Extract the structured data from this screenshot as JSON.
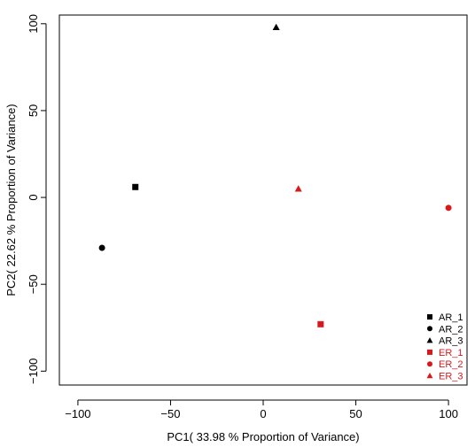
{
  "chart_data": {
    "type": "scatter",
    "title": "",
    "xlabel": "PC1( 33.98 % Proportion of Variance)",
    "ylabel": "PC2( 22.62 % Proportion of Variance)",
    "xlim": [
      -110,
      110
    ],
    "ylim": [
      -108,
      105
    ],
    "x_ticks": [
      -100,
      -50,
      0,
      50,
      100
    ],
    "y_ticks": [
      -100,
      -50,
      0,
      50,
      100
    ],
    "x_tick_labels": [
      "−100",
      "−50",
      "0",
      "50",
      "100"
    ],
    "y_tick_labels": [
      "−100",
      "−50",
      "0",
      "50",
      "100"
    ],
    "grid": false,
    "legend_position": "bottom-right",
    "series": [
      {
        "name": "AR_1",
        "color": "#000000",
        "marker": "square",
        "x": -69,
        "y": 6
      },
      {
        "name": "AR_2",
        "color": "#000000",
        "marker": "circle",
        "x": -87,
        "y": -29
      },
      {
        "name": "AR_3",
        "color": "#000000",
        "marker": "triangle",
        "x": 7,
        "y": 98
      },
      {
        "name": "ER_1",
        "color": "#d7191c",
        "marker": "square",
        "x": 31,
        "y": -73
      },
      {
        "name": "ER_2",
        "color": "#d7191c",
        "marker": "circle",
        "x": 100,
        "y": -6
      },
      {
        "name": "ER_3",
        "color": "#d7191c",
        "marker": "triangle",
        "x": 19,
        "y": 5
      }
    ]
  }
}
